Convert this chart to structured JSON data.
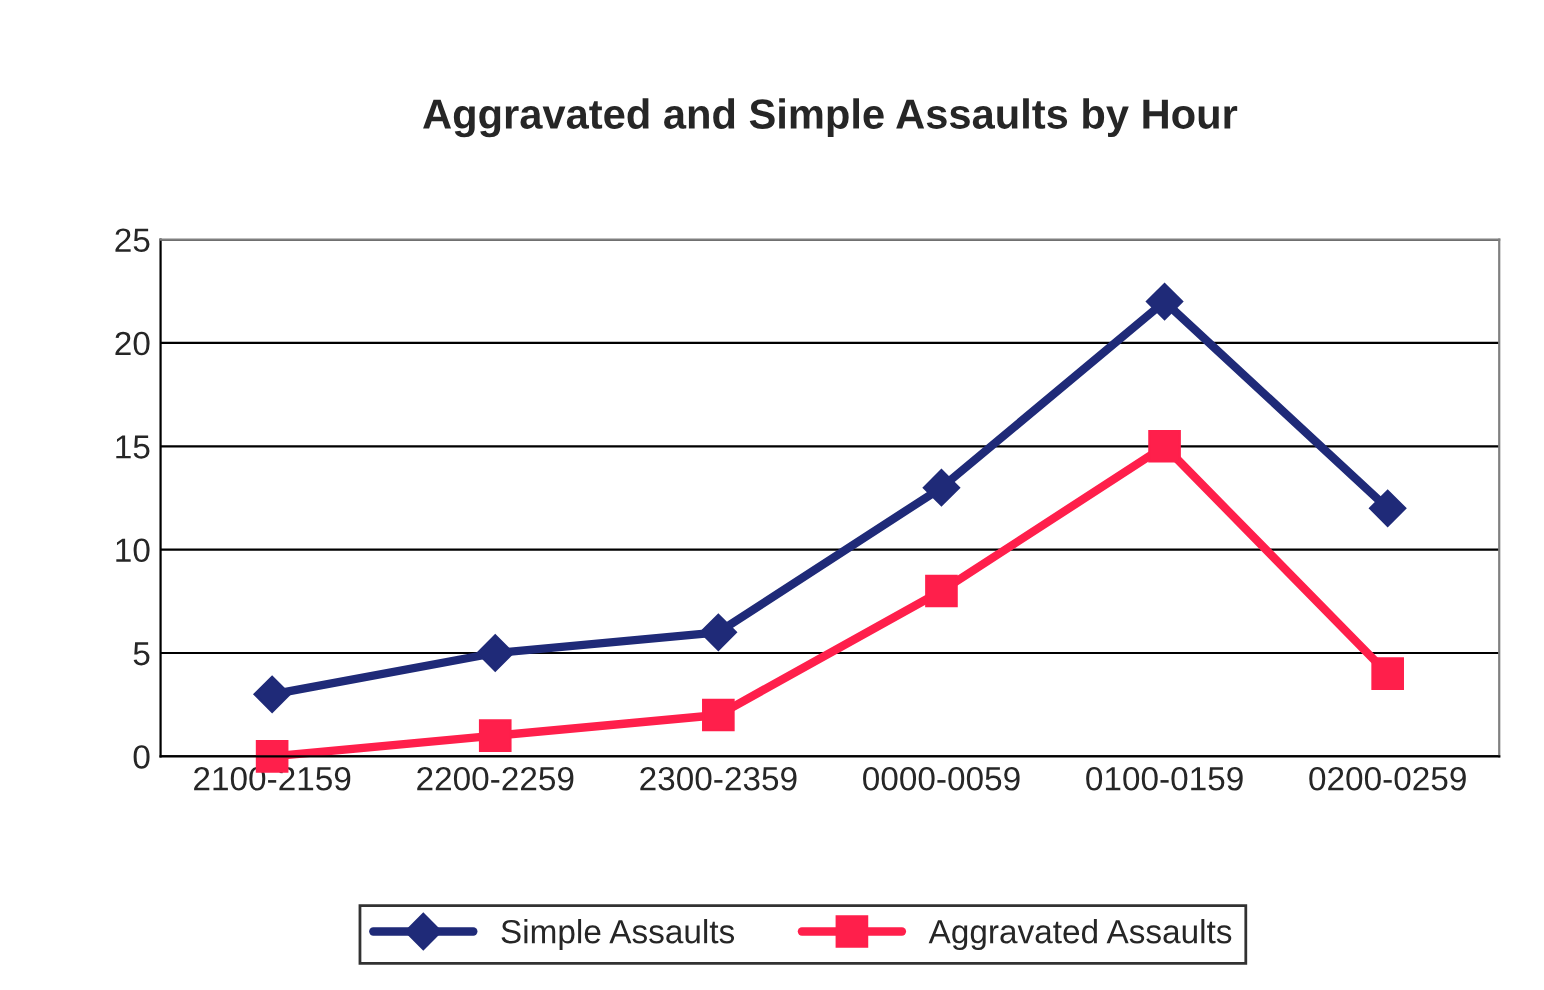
{
  "chart_data": {
    "type": "line",
    "title": "Aggravated and Simple Assaults by Hour",
    "categories": [
      "2100-2159",
      "2200-2259",
      "2300-2359",
      "0000-0059",
      "0100-0159",
      "0200-0259"
    ],
    "series": [
      {
        "name": "Simple Assaults",
        "color": "#1f2a78",
        "marker": "diamond",
        "values": [
          3,
          5,
          6,
          13,
          22,
          12
        ]
      },
      {
        "name": "Aggravated Assaults",
        "color": "#ff1f4b",
        "marker": "square",
        "values": [
          0,
          1,
          2,
          8,
          15,
          4
        ]
      }
    ],
    "ylim": [
      0,
      25
    ],
    "yticks": [
      0,
      5,
      10,
      15,
      20,
      25
    ],
    "grid": "y",
    "legend": "bottom",
    "line_style": "solid"
  }
}
